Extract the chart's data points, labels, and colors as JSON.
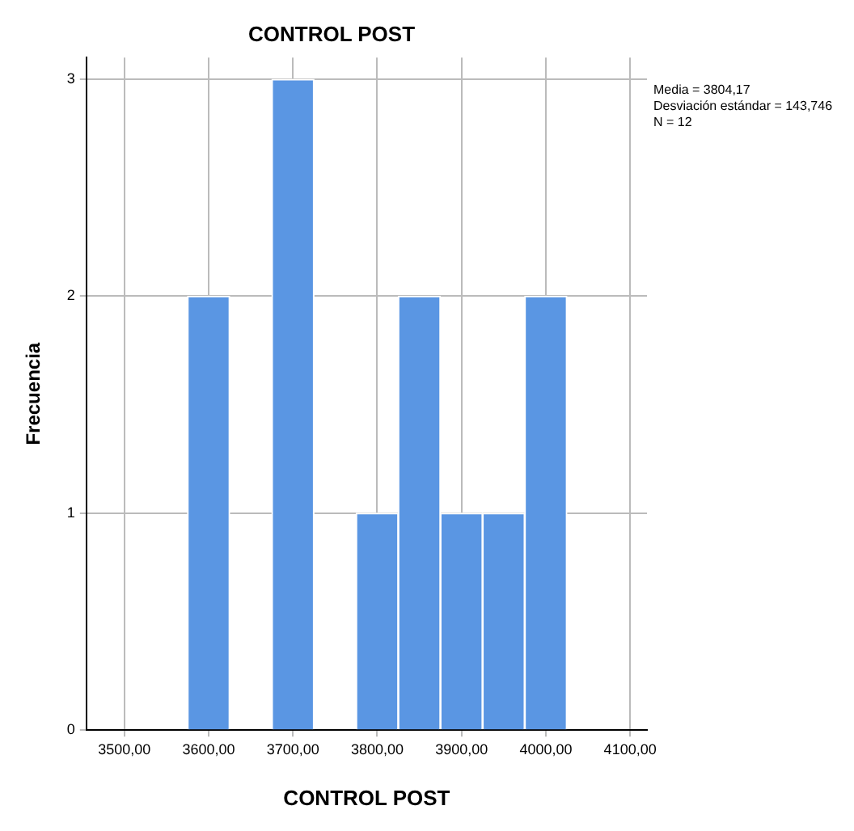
{
  "chart_data": {
    "type": "histogram",
    "title": "CONTROL POST",
    "xlabel": "CONTROL POST",
    "ylabel": "Frecuencia",
    "bins": [
      3575,
      3625,
      3675,
      3725,
      3775,
      3825,
      3875,
      3925,
      3975,
      4025
    ],
    "values": [
      2,
      0,
      3,
      0,
      1,
      2,
      1,
      1,
      2
    ],
    "color": "#5a96e3",
    "xlim": [
      3455,
      4120
    ],
    "xticks": [
      {
        "value": 3500,
        "label": "3500,00"
      },
      {
        "value": 3600,
        "label": "3600,00"
      },
      {
        "value": 3700,
        "label": "3700,00"
      },
      {
        "value": 3800,
        "label": "3800,00"
      },
      {
        "value": 3900,
        "label": "3900,00"
      },
      {
        "value": 4000,
        "label": "4000,00"
      },
      {
        "value": 4100,
        "label": "4100,00"
      }
    ],
    "ylim": [
      0,
      3.1
    ],
    "yticks": [
      0,
      1,
      2,
      3
    ],
    "grid": true,
    "annotations": [
      "Media = 3804,17",
      "Desviación estándar = 143,746",
      "N = 12"
    ]
  }
}
